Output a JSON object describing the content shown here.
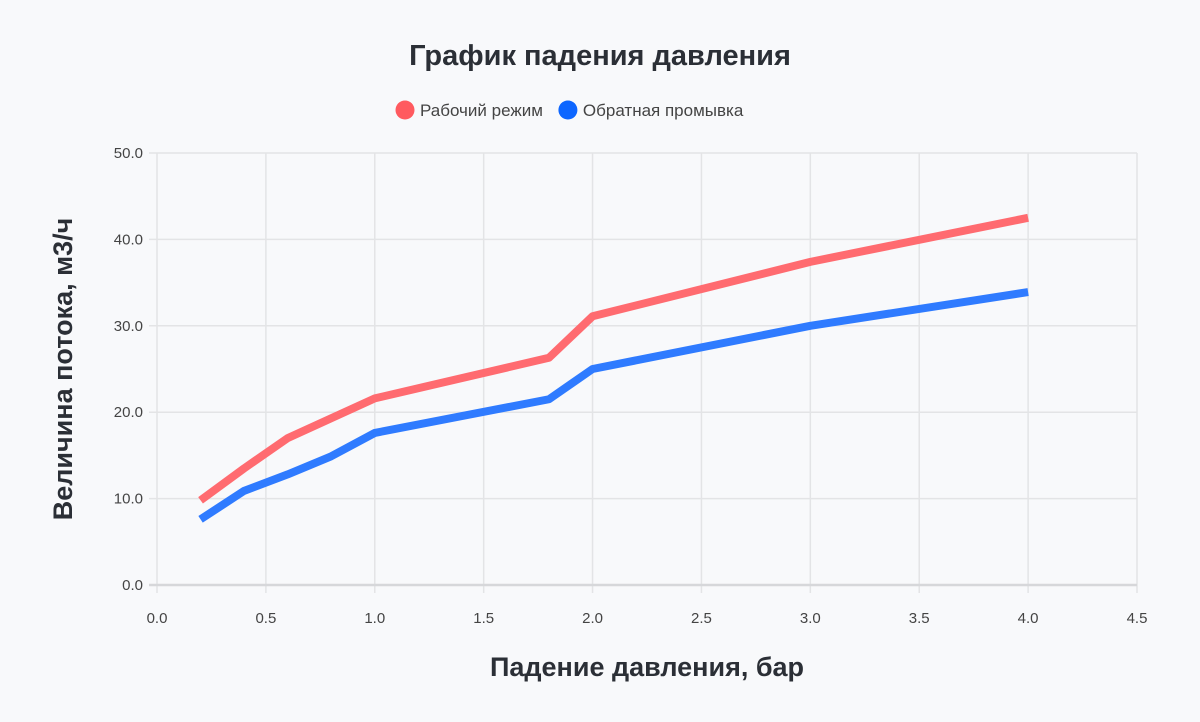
{
  "chart_data": {
    "type": "line",
    "title": "График падения давления",
    "xlabel": "Падение давления, бар",
    "ylabel": "Величина потока, м3/ч",
    "xlim": [
      0,
      4.5
    ],
    "ylim": [
      0,
      50
    ],
    "xticks": [
      "0.0",
      "0.5",
      "1.0",
      "1.5",
      "2.0",
      "2.5",
      "3.0",
      "3.5",
      "4.0",
      "4.5"
    ],
    "yticks": [
      "0.0",
      "10.0",
      "20.0",
      "30.0",
      "40.0",
      "50.0"
    ],
    "grid": true,
    "legend_position": "top",
    "x": [
      0.2,
      0.4,
      0.6,
      0.8,
      1.0,
      1.8,
      2.0,
      3.0,
      4.0
    ],
    "series": [
      {
        "name": "Рабочий режим",
        "color": "#ff6b70",
        "legend_color": "#ff5a5f",
        "values": [
          9.8,
          13.5,
          17.0,
          19.3,
          21.6,
          26.3,
          31.1,
          37.4,
          42.5
        ]
      },
      {
        "name": "Обратная промывка",
        "color": "#2f7bff",
        "legend_color": "#0d66ff",
        "values": [
          7.6,
          10.9,
          12.8,
          14.9,
          17.6,
          21.5,
          25.0,
          30.0,
          33.9
        ]
      }
    ]
  }
}
